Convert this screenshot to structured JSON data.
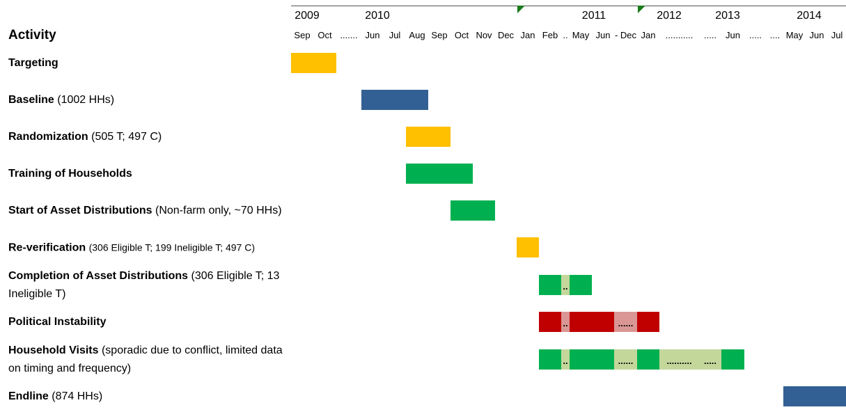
{
  "header": {
    "title": "Activity",
    "years": [
      "2009",
      "2010",
      "2011",
      "2012",
      "2013",
      "2014"
    ],
    "columns": [
      "Sep",
      "Oct",
      ".......",
      "Jun",
      "Jul",
      "Aug",
      "Sep",
      "Oct",
      "Nov",
      "Dec",
      "Jan",
      "Feb",
      "..",
      "May",
      "Jun",
      "- Dec",
      "Jan",
      "...........",
      ".....",
      "Jun",
      ".....",
      "....",
      "May",
      "Jun",
      "Jul"
    ]
  },
  "rows": [
    {
      "label": "Targeting",
      "detail": "",
      "segments": [
        {
          "start": 0,
          "end": 1,
          "color": "#ffc000",
          "text": ""
        }
      ]
    },
    {
      "label": "Baseline",
      "detail": "(1002 HHs)",
      "segments": [
        {
          "start": 3,
          "end": 5,
          "color": "#336094",
          "text": ""
        }
      ]
    },
    {
      "label": "Randomization",
      "detail": "(505 T; 497 C)",
      "segments": [
        {
          "start": 5,
          "end": 6,
          "color": "#ffc000",
          "text": ""
        }
      ]
    },
    {
      "label": "Training of Households",
      "detail": "",
      "segments": [
        {
          "start": 5,
          "end": 7,
          "color": "#00b050",
          "text": ""
        }
      ]
    },
    {
      "label": "Start of Asset Distributions",
      "detail": "(Non-farm only, ~70 HHs)",
      "segments": [
        {
          "start": 7,
          "end": 8,
          "color": "#00b050",
          "text": ""
        }
      ]
    },
    {
      "label": "Re-verification",
      "detail": "(306 Eligible T; 199 Ineligible T; 497 C)",
      "segments": [
        {
          "start": 10,
          "end": 10,
          "color": "#ffc000",
          "text": ""
        }
      ]
    },
    {
      "label": "Completion of Asset Distributions",
      "detail": "(306 Eligible T; 13 Ineligible T)",
      "segments": [
        {
          "start": 11,
          "end": 11,
          "color": "#00b050",
          "text": ""
        },
        {
          "start": 12,
          "end": 12,
          "color": "#c4d79b",
          "text": ".."
        },
        {
          "start": 13,
          "end": 13,
          "color": "#00b050",
          "text": ""
        }
      ]
    },
    {
      "label": "Political Instability",
      "detail": "",
      "segments": [
        {
          "start": 11,
          "end": 11,
          "color": "#c00000",
          "text": ""
        },
        {
          "start": 12,
          "end": 12,
          "color": "#da9694",
          "text": ".."
        },
        {
          "start": 13,
          "end": 14,
          "color": "#c00000",
          "text": ""
        },
        {
          "start": 15,
          "end": 15,
          "color": "#da9694",
          "text": "......"
        },
        {
          "start": 16,
          "end": 16,
          "color": "#c00000",
          "text": ""
        }
      ]
    },
    {
      "label": "Household Visits",
      "detail": "(sporadic due to conflict, limited data on timing and frequency)",
      "segments": [
        {
          "start": 11,
          "end": 11,
          "color": "#00b050",
          "text": ""
        },
        {
          "start": 12,
          "end": 12,
          "color": "#c4d79b",
          "text": ".."
        },
        {
          "start": 13,
          "end": 14,
          "color": "#00b050",
          "text": ""
        },
        {
          "start": 15,
          "end": 15,
          "color": "#c4d79b",
          "text": "......"
        },
        {
          "start": 16,
          "end": 16,
          "color": "#00b050",
          "text": ""
        },
        {
          "start": 17,
          "end": 17,
          "color": "#c4d79b",
          "text": ".........."
        },
        {
          "start": 18,
          "end": 18,
          "color": "#c4d79b",
          "text": "....."
        },
        {
          "start": 19,
          "end": 19,
          "color": "#00b050",
          "text": ""
        }
      ]
    },
    {
      "label": "Endline",
      "detail": "(874 HHs)",
      "segments": [
        {
          "start": 22,
          "end": 24,
          "color": "#336094",
          "text": ""
        }
      ]
    }
  ]
}
